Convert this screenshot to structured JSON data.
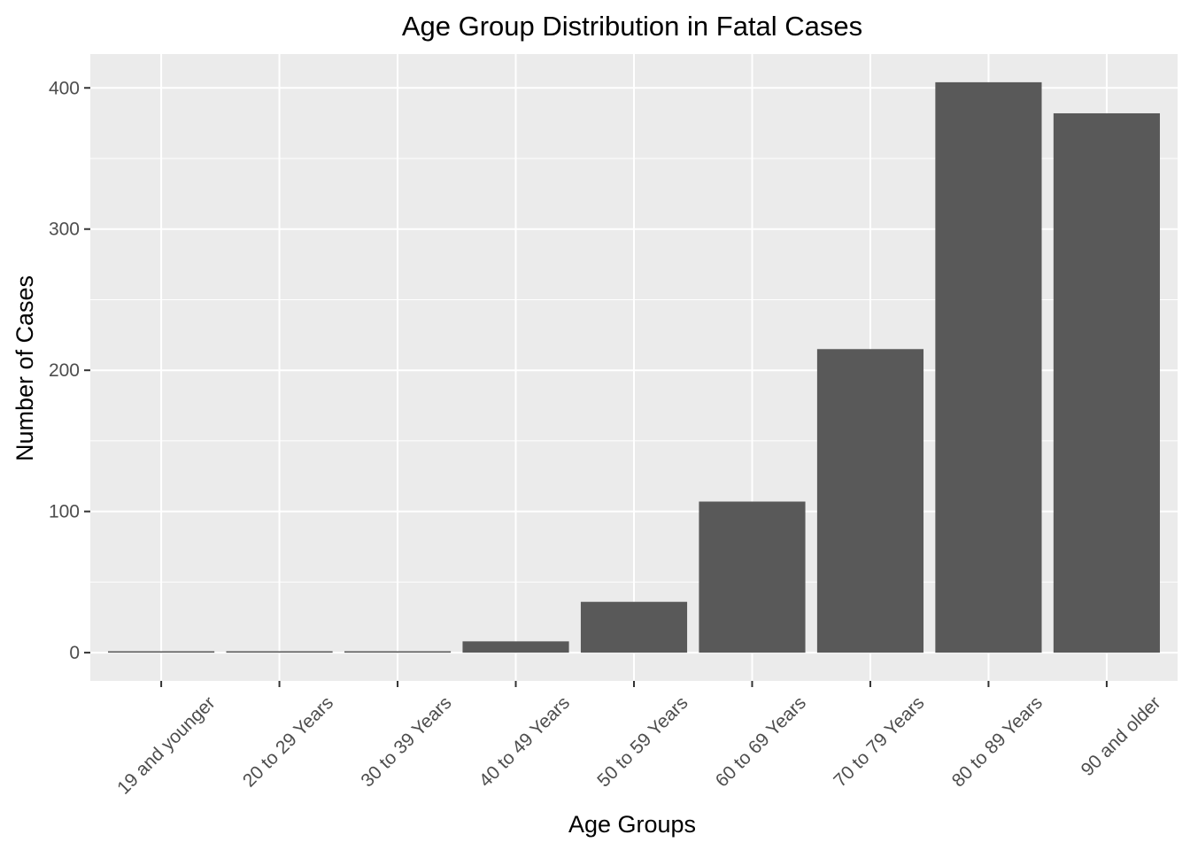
{
  "chart_data": {
    "type": "bar",
    "title": "Age Group Distribution in Fatal Cases",
    "xlabel": "Age Groups",
    "ylabel": "Number of Cases",
    "categories": [
      "19 and younger",
      "20 to 29 Years",
      "30 to 39 Years",
      "40 to 49 Years",
      "50 to 59 Years",
      "60 to 69 Years",
      "70 to 79 Years",
      "80 to 89 Years",
      "90 and older"
    ],
    "values": [
      1,
      1,
      1,
      8,
      36,
      107,
      215,
      404,
      382
    ],
    "ylim": [
      -20,
      424
    ],
    "yticks": [
      0,
      100,
      200,
      300,
      400
    ],
    "ytick_labels": [
      "0",
      "100",
      "200",
      "300",
      "400"
    ],
    "grid": true,
    "legend": "none",
    "colors": {
      "bar": "#595959",
      "panel": "#ebebeb",
      "grid": "#ffffff",
      "tick": "#333333"
    }
  }
}
